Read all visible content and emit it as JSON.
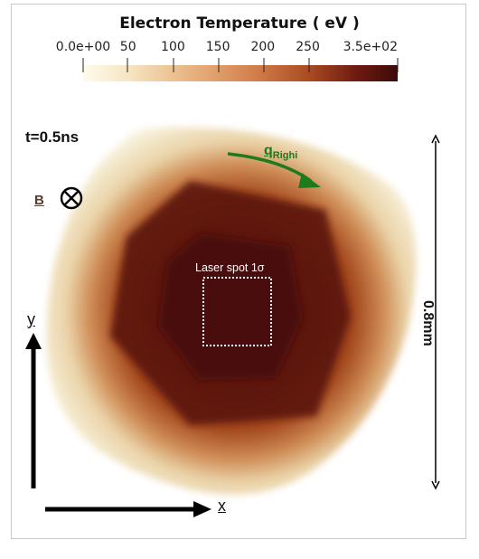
{
  "colorbar": {
    "title": "Electron Temperature ( eV )",
    "tick_labels": [
      "0.0e+00",
      "50",
      "100",
      "150",
      "200",
      "250",
      "3.5e+02"
    ],
    "tick_values": [
      0,
      50,
      100,
      150,
      200,
      250,
      350
    ],
    "range": [
      0,
      350
    ],
    "colors": [
      "#fffbee",
      "#f6e4c0",
      "#e7b17e",
      "#d27d49",
      "#a84a22",
      "#6e1a10",
      "#3d0b0b"
    ]
  },
  "annotations": {
    "time": "t=0.5ns",
    "laser_spot": "Laser spot 1σ",
    "scale": "0.8mm",
    "b_field": "B",
    "y_axis": "y",
    "x_axis": "x",
    "q_main": "q",
    "q_sub": "Righi"
  },
  "colors": {
    "arrow": "#000000",
    "righi_arrow": "#1d7a1d",
    "b_label": "#5a3b2d",
    "laser_box": "#ffffff"
  },
  "icons": {
    "b_field_symbol": "circle-x-icon"
  }
}
